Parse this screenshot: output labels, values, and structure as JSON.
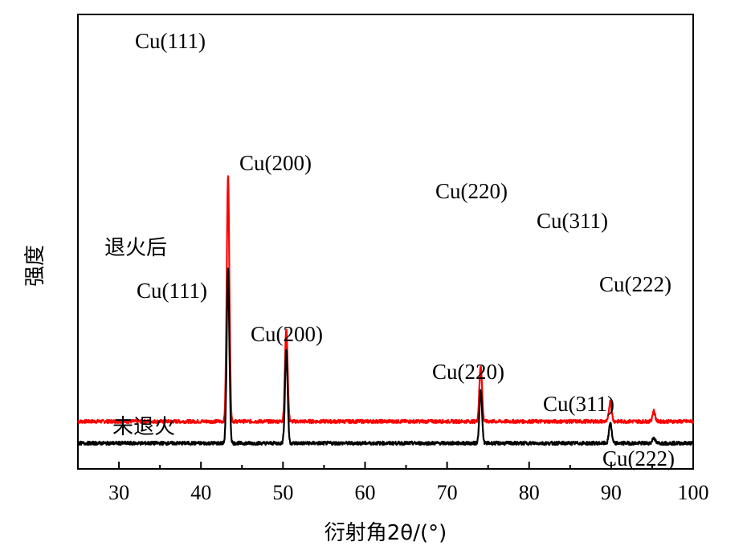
{
  "chart_data": {
    "type": "line",
    "title": "",
    "xlabel": "衍射角2θ/(°)",
    "ylabel": "强度",
    "xlim": [
      25,
      100
    ],
    "xticks": [
      "30",
      "40",
      "50",
      "60",
      "70",
      "80",
      "90",
      "100"
    ],
    "series": [
      {
        "name": "退火后",
        "color": "#ff0000",
        "baseline": 2.3,
        "noise": 0.03,
        "peaks": [
          {
            "x": 43.3,
            "y": 26.0,
            "label": "Cu(111)"
          },
          {
            "x": 50.4,
            "y": 9.8,
            "label": "Cu(200)"
          },
          {
            "x": 74.1,
            "y": 5.9,
            "label": "Cu(220)"
          },
          {
            "x": 89.9,
            "y": 2.1,
            "label": "Cu(311)"
          },
          {
            "x": 95.2,
            "y": 1.1,
            "label": "Cu(222)"
          }
        ]
      },
      {
        "name": "未退火",
        "color": "#000000",
        "baseline": 0.0,
        "noise": 0.03,
        "peaks": [
          {
            "x": 43.3,
            "y": 18.4,
            "label": "Cu(111)"
          },
          {
            "x": 50.4,
            "y": 9.9,
            "label": "Cu(200)"
          },
          {
            "x": 74.1,
            "y": 5.6,
            "label": "Cu(220)"
          },
          {
            "x": 89.9,
            "y": 2.2,
            "label": "Cu(311)"
          },
          {
            "x": 95.2,
            "y": 0.6,
            "label": "Cu(222)"
          }
        ]
      }
    ]
  }
}
